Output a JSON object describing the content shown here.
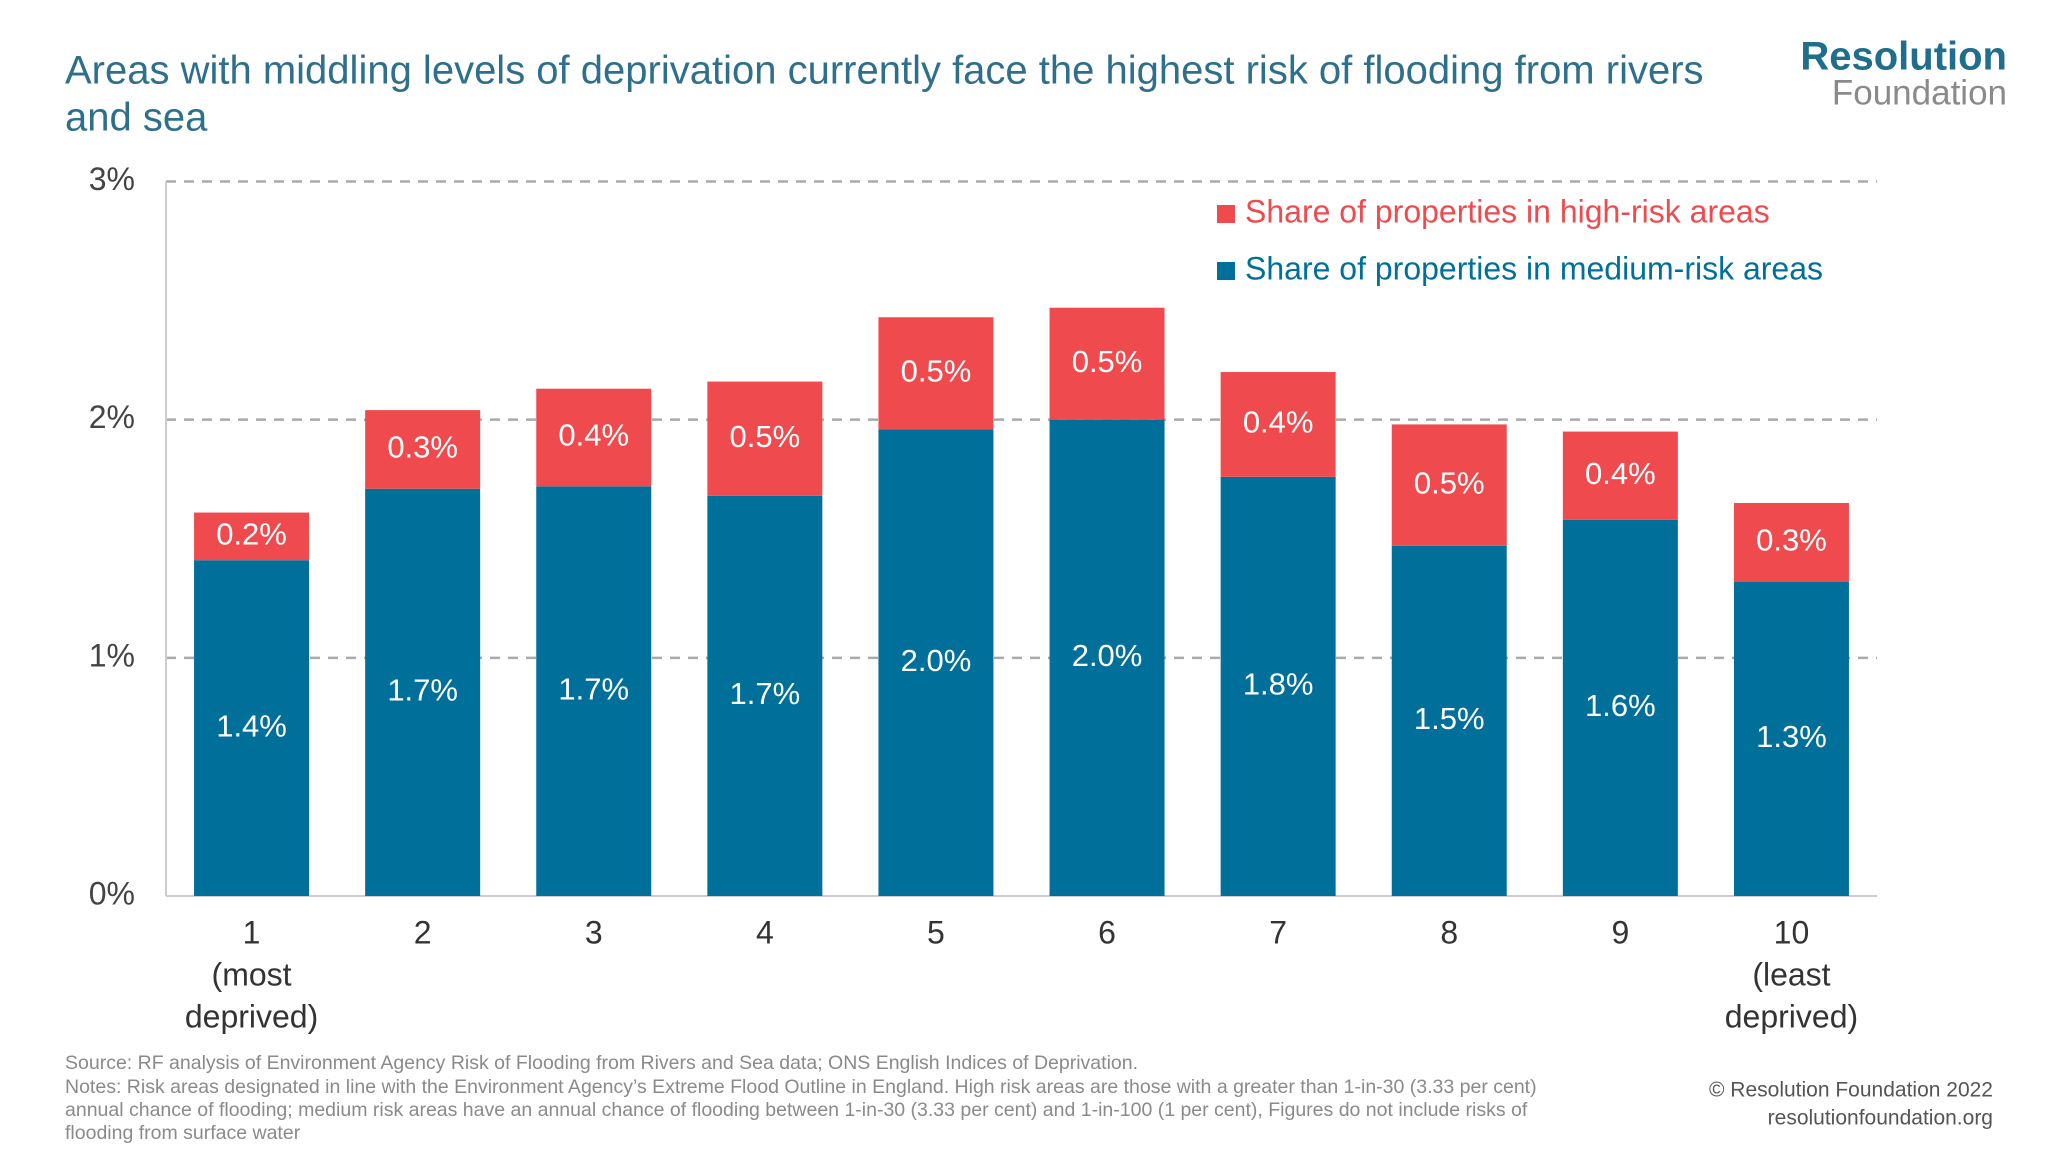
{
  "chart_data": {
    "type": "stacked-bar",
    "title": "Areas with middling levels of deprivation currently face the highest risk of flooding from rivers and sea",
    "categories": [
      [
        "1",
        "(most",
        "deprived)"
      ],
      [
        "2"
      ],
      [
        "3"
      ],
      [
        "4"
      ],
      [
        "5"
      ],
      [
        "6"
      ],
      [
        "7"
      ],
      [
        "8"
      ],
      [
        "9"
      ],
      [
        "10",
        "(least",
        "deprived)"
      ]
    ],
    "series": [
      {
        "name": "Share of properties in medium-risk areas",
        "color": "#00709b",
        "values": [
          1.41,
          1.71,
          1.72,
          1.68,
          1.96,
          2.0,
          1.76,
          1.47,
          1.58,
          1.32
        ],
        "value_labels": [
          "1.4%",
          "1.7%",
          "1.7%",
          "1.7%",
          "2.0%",
          "2.0%",
          "1.8%",
          "1.5%",
          "1.6%",
          "1.3%"
        ]
      },
      {
        "name": "Share of properties in high-risk areas",
        "color": "#ef4b4e",
        "values": [
          0.2,
          0.33,
          0.41,
          0.48,
          0.47,
          0.47,
          0.44,
          0.51,
          0.37,
          0.33
        ],
        "value_labels": [
          "0.2%",
          "0.3%",
          "0.4%",
          "0.5%",
          "0.5%",
          "0.5%",
          "0.4%",
          "0.5%",
          "0.4%",
          "0.3%"
        ]
      }
    ],
    "ylim": [
      0,
      3
    ],
    "yticks": [
      {
        "value": 0,
        "label": "0%"
      },
      {
        "value": 1,
        "label": "1%"
      },
      {
        "value": 2,
        "label": "2%"
      },
      {
        "value": 3,
        "label": "3%"
      }
    ],
    "grid": true,
    "legend_position": "top-right",
    "source": "Source: RF analysis of Environment Agency Risk of Flooding from Rivers and Sea data; ONS English Indices of Deprivation.",
    "notes": [
      "Notes: Risk areas designated in line with the Environment Agency’s Extreme Flood Outline in England. High risk areas are those with a greater than 1-in-30 (3.33 per cent)",
      "annual chance of flooding; medium risk areas have an annual chance of flooding between 1-in-30 (3.33 per cent) and 1-in-100 (1 per cent), Figures do not include risks of",
      "flooding from surface water"
    ],
    "logo": [
      "Resolution",
      "Foundation"
    ],
    "copyright": [
      "© Resolution Foundation 2022",
      "resolutionfoundation.org"
    ]
  }
}
